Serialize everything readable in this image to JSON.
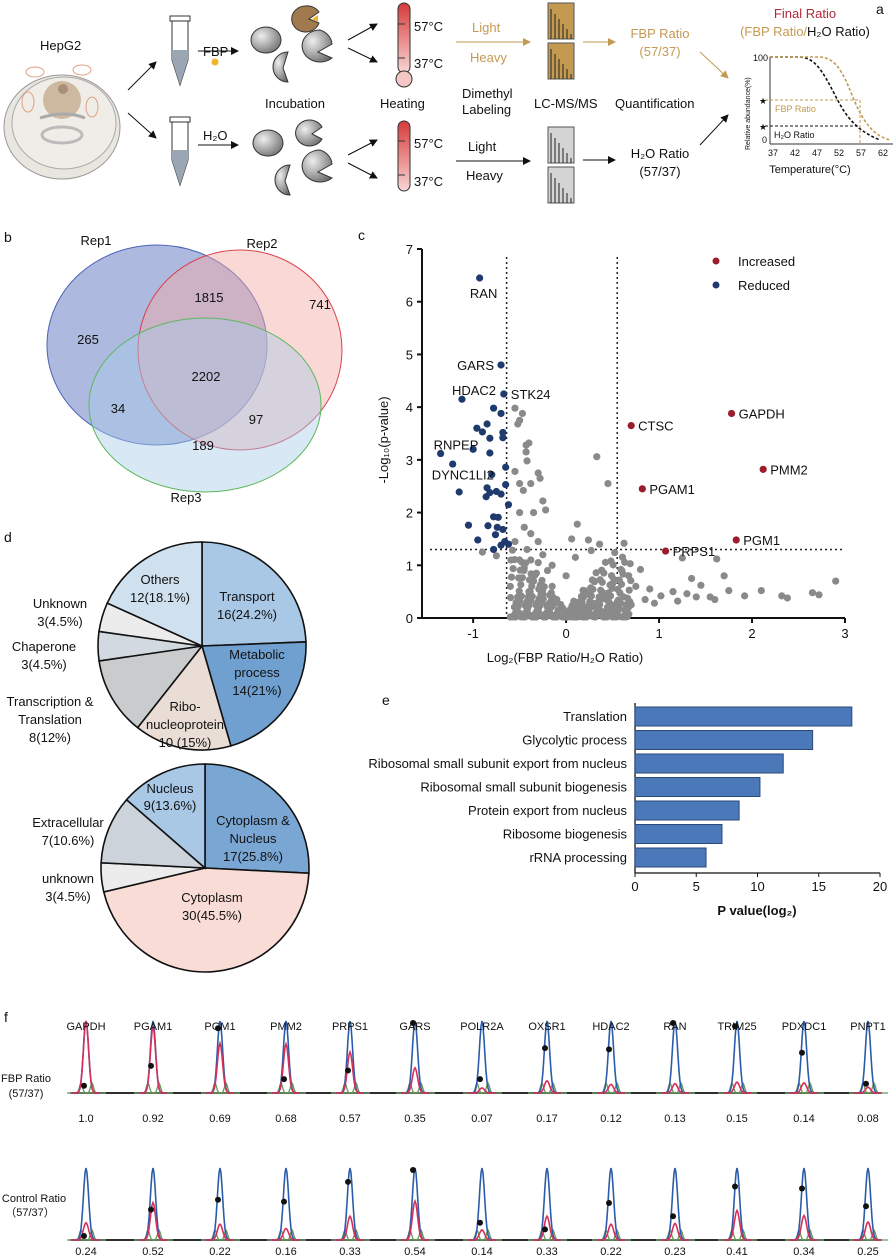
{
  "panels": {
    "a": "a",
    "b": "b",
    "c": "c",
    "d": "d",
    "e": "e",
    "f": "f"
  },
  "workflow": {
    "cell_line": "HepG2",
    "treatment_fbp": "FBP",
    "treatment_h2o": "H₂O",
    "incubation": "Incubation",
    "heating": "Heating",
    "temp_high": "57°C",
    "temp_low": "37°C",
    "light": "Light",
    "heavy": "Heavy",
    "dimethyl_1": "Dimethyl",
    "dimethyl_2": "Labeling",
    "lcms": "LC-MS/MS",
    "quantification": "Quantification",
    "fbp_ratio": "FBP Ratio",
    "ratio_temps": "(57/37)",
    "h2o_ratio": "H₂O Ratio",
    "final_ratio": "Final Ratio",
    "final_ratio_fbp": "(FBP Ratio/",
    "final_ratio_h2o": "H₂O Ratio)",
    "colors": {
      "fbp": "#c49a52",
      "final": "#b02a3a"
    },
    "mini_chart": {
      "ylabel": "Relative abundance(%)",
      "xlabel": "Temperature(°C)",
      "y_ticks": [
        "100",
        "0"
      ],
      "x_ticks": [
        "37",
        "42",
        "47",
        "52",
        "57",
        "62"
      ],
      "fbp_label": "FBP Ratio",
      "h2o_label": "H₂O Ratio"
    }
  },
  "chart_data": [
    {
      "type": "venn",
      "sets": [
        "Rep1",
        "Rep2",
        "Rep3"
      ],
      "regions": {
        "rep1_only": 265,
        "rep1_rep2": 1815,
        "rep2_only": 741,
        "all": 2202,
        "rep1_rep3": 34,
        "rep2_rep3": 97,
        "rep3_only": 189
      },
      "colors": {
        "Rep1": "#4a63b5",
        "Rep2": "#d9434e",
        "Rep3": "#5cb85c"
      }
    },
    {
      "type": "scatter",
      "xlabel": "Log₂(FBP Ratio/H₂O Ratio)",
      "ylabel": "-Log₁₀(p-value)",
      "xlim": [
        -1.55,
        3
      ],
      "ylim": [
        0,
        7
      ],
      "x_ticks": [
        "-1",
        "0",
        "1",
        "2",
        "3"
      ],
      "y_ticks": [
        "0",
        "1",
        "2",
        "3",
        "4",
        "5",
        "6",
        "7"
      ],
      "thresholds": {
        "x": [
          -0.64,
          0.55
        ],
        "y": 1.3
      },
      "legend": [
        {
          "name": "Increased",
          "color": "#9b1c2c"
        },
        {
          "name": "Reduced",
          "color": "#1f3b6e"
        }
      ],
      "legend_position": "top-right",
      "labeled": [
        {
          "name": "RAN",
          "x": -0.93,
          "y": 6.45,
          "group": "Reduced"
        },
        {
          "name": "GARS",
          "x": -0.7,
          "y": 4.8,
          "group": "Reduced"
        },
        {
          "name": "HDAC2",
          "x": -1.12,
          "y": 4.15,
          "group": "Reduced"
        },
        {
          "name": "STK24",
          "x": -0.67,
          "y": 4.25,
          "group": "Reduced"
        },
        {
          "name": "RNPEP",
          "x": -1.35,
          "y": 3.12,
          "group": "Reduced"
        },
        {
          "name": "DYNC1LI2",
          "x": -0.8,
          "y": 2.72,
          "group": "Reduced"
        },
        {
          "name": "CTSC",
          "x": 0.7,
          "y": 3.65,
          "group": "Increased"
        },
        {
          "name": "GAPDH",
          "x": 1.78,
          "y": 3.88,
          "group": "Increased"
        },
        {
          "name": "PMM2",
          "x": 2.12,
          "y": 2.82,
          "group": "Increased"
        },
        {
          "name": "PGAM1",
          "x": 0.82,
          "y": 2.45,
          "group": "Increased"
        },
        {
          "name": "PGM1",
          "x": 1.83,
          "y": 1.48,
          "group": "Increased"
        },
        {
          "name": "PRPS1",
          "x": 1.07,
          "y": 1.27,
          "group": "Increased"
        }
      ],
      "reduced_points": [
        [
          -0.78,
          3.98
        ],
        [
          -0.7,
          3.88
        ],
        [
          -0.85,
          3.68
        ],
        [
          -0.96,
          3.6
        ],
        [
          -0.9,
          3.53
        ],
        [
          -0.68,
          3.52
        ],
        [
          -0.68,
          3.42
        ],
        [
          -0.82,
          3.41
        ],
        [
          -1.0,
          3.2
        ],
        [
          -0.82,
          3.13
        ],
        [
          -1.22,
          2.92
        ],
        [
          -0.65,
          2.86
        ],
        [
          -0.85,
          2.47
        ],
        [
          -0.65,
          2.53
        ],
        [
          -0.82,
          2.38
        ],
        [
          -0.75,
          2.4
        ],
        [
          -0.7,
          2.35
        ],
        [
          -1.15,
          2.39
        ],
        [
          -0.86,
          2.3
        ],
        [
          -0.62,
          2.15
        ],
        [
          -0.78,
          1.92
        ],
        [
          -0.73,
          1.91
        ],
        [
          -1.05,
          1.76
        ],
        [
          -0.84,
          1.75
        ],
        [
          -0.74,
          1.72
        ],
        [
          -0.68,
          1.68
        ],
        [
          -0.76,
          1.58
        ],
        [
          -0.95,
          1.48
        ],
        [
          -0.66,
          1.45
        ],
        [
          -0.62,
          1.4
        ],
        [
          -0.7,
          1.38
        ],
        [
          -0.78,
          1.3
        ]
      ],
      "other_points": [
        [
          -0.55,
          3.98
        ],
        [
          -0.47,
          3.88
        ],
        [
          -0.5,
          3.75
        ],
        [
          -0.52,
          3.68
        ],
        [
          -0.4,
          3.32
        ],
        [
          -0.43,
          3.28
        ],
        [
          -0.43,
          3.15
        ],
        [
          0.33,
          3.06
        ],
        [
          -0.42,
          2.98
        ],
        [
          -0.55,
          2.78
        ],
        [
          -0.3,
          2.75
        ],
        [
          -0.28,
          2.65
        ],
        [
          0.45,
          2.55
        ],
        [
          -0.5,
          2.55
        ],
        [
          -0.38,
          2.55
        ],
        [
          -0.46,
          2.42
        ],
        [
          -0.25,
          2.22
        ],
        [
          -0.22,
          2.05
        ],
        [
          -0.35,
          2.0
        ],
        [
          -0.5,
          2.0
        ],
        [
          0.12,
          1.78
        ],
        [
          -0.45,
          1.72
        ],
        [
          -0.38,
          1.6
        ],
        [
          0.06,
          1.5
        ],
        [
          -0.3,
          1.45
        ],
        [
          0.24,
          1.48
        ],
        [
          0.36,
          1.4
        ],
        [
          -0.55,
          1.45
        ],
        [
          -0.42,
          1.3
        ],
        [
          0.27,
          1.28
        ],
        [
          -0.9,
          1.25
        ],
        [
          0.1,
          1.15
        ],
        [
          -0.75,
          1.18
        ],
        [
          1.25,
          1.14
        ],
        [
          1.62,
          1.12
        ],
        [
          -0.5,
          1.1
        ],
        [
          -0.3,
          1.05
        ],
        [
          0.6,
          0.9
        ],
        [
          0.8,
          0.92
        ],
        [
          1.7,
          0.8
        ],
        [
          1.35,
          0.75
        ],
        [
          -0.45,
          0.95
        ],
        [
          -0.2,
          0.9
        ],
        [
          0.0,
          0.8
        ],
        [
          0.3,
          0.7
        ],
        [
          0.5,
          0.65
        ],
        [
          0.75,
          0.6
        ],
        [
          2.9,
          0.7
        ],
        [
          1.45,
          0.62
        ],
        [
          0.9,
          0.55
        ],
        [
          -0.6,
          0.6
        ],
        [
          -0.35,
          0.7
        ],
        [
          -0.15,
          0.6
        ],
        [
          0.2,
          0.5
        ],
        [
          1.75,
          0.52
        ],
        [
          2.1,
          0.52
        ],
        [
          2.65,
          0.48
        ],
        [
          2.72,
          0.44
        ],
        [
          1.15,
          0.5
        ],
        [
          1.3,
          0.46
        ],
        [
          1.55,
          0.4
        ],
        [
          1.92,
          0.42
        ],
        [
          2.32,
          0.42
        ],
        [
          2.38,
          0.38
        ],
        [
          1.02,
          0.42
        ],
        [
          1.2,
          0.32
        ],
        [
          0.62,
          0.4
        ],
        [
          -0.25,
          0.45
        ],
        [
          -0.1,
          0.35
        ],
        [
          0.1,
          0.3
        ],
        [
          0.35,
          0.28
        ],
        [
          0.55,
          0.3
        ],
        [
          0.95,
          0.28
        ],
        [
          -0.05,
          0.2
        ],
        [
          0.15,
          0.18
        ],
        [
          -0.2,
          0.25
        ],
        [
          0.45,
          0.2
        ],
        [
          0.05,
          0.1
        ],
        [
          -0.1,
          0.08
        ],
        [
          0.25,
          0.1
        ],
        [
          1.6,
          0.35
        ],
        [
          1.4,
          0.4
        ],
        [
          0.7,
          0.25
        ],
        [
          0.85,
          0.35
        ],
        [
          -0.4,
          0.5
        ],
        [
          -0.32,
          0.85
        ],
        [
          -0.25,
          1.2
        ],
        [
          -0.15,
          1.0
        ],
        [
          -0.38,
          1.1
        ],
        [
          -0.28,
          0.6
        ],
        [
          0.4,
          0.45
        ]
      ]
    },
    {
      "type": "pie",
      "slices": [
        {
          "label": "Transport",
          "text": "16(24.2%)",
          "value": 24.2,
          "color": "#a9c8e6"
        },
        {
          "label": "Metabolic process",
          "text": "14(21%)",
          "value": 21,
          "color": "#6fa0d0"
        },
        {
          "label": "Ribonucleoprotein",
          "text": "10 (15%)",
          "value": 15,
          "color": "#e9ddd5"
        },
        {
          "label": "Transcription & Translation",
          "text": "8(12%)",
          "value": 12,
          "color": "#c9cbcd"
        },
        {
          "label": "Chaperone",
          "text": "3(4.5%)",
          "value": 4.5,
          "color": "#d3d9e0"
        },
        {
          "label": "Unknown",
          "text": "3(4.5%)",
          "value": 4.5,
          "color": "#ececec"
        },
        {
          "label": "Others",
          "text": "12(18.1%)",
          "value": 18.1,
          "color": "#cfe0ef"
        }
      ],
      "display": {
        "metabolic_1": "Metabolic",
        "metabolic_2": "process",
        "ribo_1": "Ribo-",
        "ribo_2": "nucleoprotein",
        "trans_1": "Transcription &",
        "trans_2": "Translation"
      }
    },
    {
      "type": "pie",
      "slices": [
        {
          "label": "Cytoplasm & Nucleus",
          "text": "17(25.8%)",
          "value": 25.8,
          "color": "#7aa6d4"
        },
        {
          "label": "Cytoplasm",
          "text": "30(45.5%)",
          "value": 45.5,
          "color": "#f9dcd5"
        },
        {
          "label": "unknown",
          "text": "3(4.5%)",
          "value": 4.5,
          "color": "#ececec"
        },
        {
          "label": "Extracellular",
          "text": "7(10.6%)",
          "value": 10.6,
          "color": "#cdd3da"
        },
        {
          "label": "Nucleus",
          "text": "9(13.6%)",
          "value": 13.6,
          "color": "#a9c8e6"
        }
      ],
      "display": {
        "cn_1": "Cytoplasm &",
        "cn_2": "Nucleus"
      }
    },
    {
      "type": "bar",
      "orientation": "horizontal",
      "categories": [
        "Translation",
        "Glycolytic process",
        "Ribosomal small subunit export from nucleus",
        "Ribosomal small subunit biogenesis",
        "Protein export from nucleus",
        "Ribosome biogenesis",
        "rRNA processing"
      ],
      "values": [
        17.7,
        14.5,
        12.1,
        10.2,
        8.5,
        7.1,
        5.8
      ],
      "xlabel": "P value(log₂)",
      "xlim": [
        0,
        20
      ],
      "x_ticks": [
        "0",
        "5",
        "10",
        "15",
        "20"
      ],
      "color": "#4a78b8"
    },
    {
      "type": "line",
      "description_rows": [
        "FBP Ratio",
        "Control Ratio"
      ],
      "row_labels": [
        [
          "FBP Ratio",
          "(57/37)"
        ],
        [
          "Control Ratio",
          "（57/37）"
        ]
      ],
      "proteins": [
        "GAPDH",
        "PGAM1",
        "PGM1",
        "PMM2",
        "PRPS1",
        "GARS",
        "POLR2A",
        "OXSR1",
        "HDAC2",
        "RAN",
        "TRIM25",
        "PDXDC1",
        "PNPT1"
      ],
      "fbp_ratio": [
        "1.0",
        "0.92",
        "0.69",
        "0.68",
        "0.57",
        "0.35",
        "0.07",
        "0.17",
        "0.12",
        "0.13",
        "0.15",
        "0.14",
        "0.08"
      ],
      "control_ratio": [
        "0.24",
        "0.52",
        "0.22",
        "0.16",
        "0.33",
        "0.54",
        "0.14",
        "0.33",
        "0.22",
        "0.23",
        "0.41",
        "0.34",
        "0.25"
      ],
      "fbp_marker": [
        0.05,
        0.35,
        0.92,
        0.15,
        0.28,
        1.0,
        0.15,
        0.62,
        0.6,
        1.0,
        0.95,
        0.55,
        0.08
      ],
      "control_marker": [
        0.0,
        0.4,
        0.55,
        0.52,
        0.82,
        1.0,
        0.2,
        0.1,
        0.5,
        0.3,
        0.75,
        0.72,
        0.45
      ],
      "colors": {
        "37C": "#2a5caa",
        "57C": "#d6305a",
        "other": "#6a9a5a"
      }
    }
  ]
}
